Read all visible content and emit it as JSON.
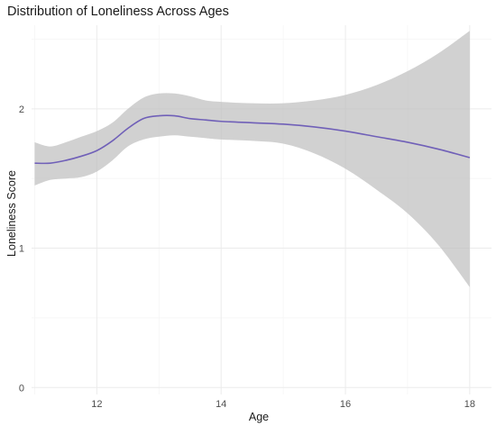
{
  "chart_data": {
    "type": "line",
    "title": "Distribution of Loneliness Across Ages",
    "xlabel": "Age",
    "ylabel": "Loneliness Score",
    "xlim": [
      10.95,
      18.35
    ],
    "ylim": [
      -0.05,
      2.6
    ],
    "x_ticks": [
      12,
      14,
      16,
      18
    ],
    "y_ticks": [
      0,
      1,
      2
    ],
    "grid": true,
    "legend": "none",
    "line_color": "#7060b8",
    "band_color": "#bdbdbd",
    "series": [
      {
        "x": [
          11.0,
          11.25,
          11.5,
          11.75,
          12.0,
          12.25,
          12.5,
          12.75,
          13.0,
          13.25,
          13.5,
          13.75,
          14.0,
          14.5,
          15.0,
          15.5,
          16.0,
          16.5,
          17.0,
          17.5,
          18.0
        ],
        "y": [
          1.61,
          1.61,
          1.63,
          1.66,
          1.7,
          1.77,
          1.86,
          1.93,
          1.95,
          1.95,
          1.93,
          1.92,
          1.91,
          1.9,
          1.89,
          1.87,
          1.84,
          1.8,
          1.76,
          1.71,
          1.65
        ],
        "lower": [
          1.45,
          1.49,
          1.5,
          1.51,
          1.55,
          1.63,
          1.73,
          1.78,
          1.8,
          1.81,
          1.8,
          1.79,
          1.78,
          1.77,
          1.75,
          1.68,
          1.57,
          1.42,
          1.25,
          1.02,
          0.72
        ],
        "upper": [
          1.76,
          1.73,
          1.76,
          1.8,
          1.84,
          1.9,
          2.0,
          2.08,
          2.11,
          2.11,
          2.09,
          2.06,
          2.05,
          2.04,
          2.04,
          2.06,
          2.1,
          2.17,
          2.27,
          2.4,
          2.56
        ]
      }
    ]
  }
}
